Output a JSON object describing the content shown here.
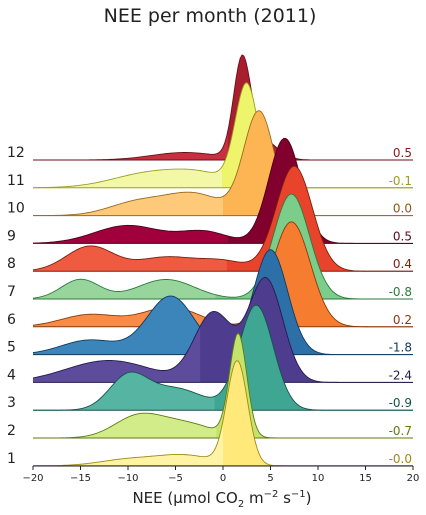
{
  "chart_data": {
    "type": "area",
    "title": "NEE per month (2011)",
    "xlabel": {
      "main": "NEE (µmol CO",
      "sub": "2",
      "mid": " m",
      "sup1": "−2",
      "mid2": " s",
      "sup2": "−1",
      "end": ")"
    },
    "xlim": [
      -20,
      20
    ],
    "xticks": [
      {
        "value": -20,
        "label": "−20"
      },
      {
        "value": -15,
        "label": "−15"
      },
      {
        "value": -10,
        "label": "−10"
      },
      {
        "value": -5,
        "label": "−5"
      },
      {
        "value": 0,
        "label": "0"
      },
      {
        "value": 5,
        "label": "5"
      },
      {
        "value": 10,
        "label": "10"
      },
      {
        "value": 15,
        "label": "15"
      },
      {
        "value": 20,
        "label": "20"
      }
    ],
    "series": [
      {
        "month": "12",
        "mean_label": "0.5",
        "mean": 0.5,
        "fill": "#c8303f",
        "dark": "#a81e2e",
        "line": "#6a0f1a",
        "label_color": "#8b1a1a",
        "components": [
          [
            2.0,
            0.9,
            1.0
          ],
          [
            4.0,
            1.6,
            0.22
          ],
          [
            -4.0,
            3.5,
            0.08
          ]
        ]
      },
      {
        "month": "11",
        "mean_label": "-0.1",
        "mean": -0.1,
        "fill": "#f3f8a6",
        "dark": "#eef46c",
        "line": "#9aa11a",
        "label_color": "#9aa11a",
        "components": [
          [
            2.5,
            1.2,
            0.95
          ],
          [
            -7.5,
            4.0,
            0.14
          ],
          [
            -2.0,
            3.0,
            0.1
          ]
        ]
      },
      {
        "month": "10",
        "mean_label": "0.0",
        "mean": 0.0,
        "fill": "#fec979",
        "dark": "#fdb553",
        "line": "#9a6a1f",
        "label_color": "#8a5a10",
        "components": [
          [
            3.8,
            1.6,
            0.78
          ],
          [
            -3.0,
            3.0,
            0.16
          ],
          [
            -9.0,
            3.0,
            0.1
          ]
        ]
      },
      {
        "month": "9",
        "mean_label": "0.5",
        "mean": 0.5,
        "fill": "#a0003c",
        "dark": "#82002e",
        "line": "#4c0019",
        "label_color": "#5a0a1a",
        "components": [
          [
            6.5,
            1.7,
            0.82
          ],
          [
            -10.0,
            3.5,
            0.14
          ],
          [
            -2.0,
            2.5,
            0.09
          ]
        ]
      },
      {
        "month": "8",
        "mean_label": "0.4",
        "mean": 0.4,
        "fill": "#ef5b40",
        "dark": "#e8442c",
        "line": "#7a1f0f",
        "label_color": "#7a1f0f",
        "components": [
          [
            7.5,
            1.9,
            0.76
          ],
          [
            -14.0,
            2.5,
            0.18
          ],
          [
            -6.0,
            3.0,
            0.1
          ],
          [
            0.0,
            2.5,
            0.07
          ]
        ]
      },
      {
        "month": "7",
        "mean_label": "-0.8",
        "mean": -0.8,
        "fill": "#97d59c",
        "dark": "#7ccc8a",
        "line": "#2c7a3c",
        "label_color": "#2c7a3c",
        "components": [
          [
            7.2,
            1.9,
            0.86
          ],
          [
            -15.0,
            2.0,
            0.16
          ],
          [
            -6.0,
            3.0,
            0.16
          ]
        ]
      },
      {
        "month": "6",
        "mean_label": "0.2",
        "mean": 0.2,
        "fill": "#f88c47",
        "dark": "#f67d2f",
        "line": "#8a3a0c",
        "label_color": "#8a3a0c",
        "components": [
          [
            7.2,
            2.0,
            0.86
          ],
          [
            -5.5,
            3.0,
            0.16
          ],
          [
            -14.0,
            3.0,
            0.1
          ]
        ]
      },
      {
        "month": "5",
        "mean_label": "-1.8",
        "mean": -1.8,
        "fill": "#3c85ba",
        "dark": "#2d70a8",
        "line": "#123a5a",
        "label_color": "#123a5a",
        "components": [
          [
            5.0,
            1.8,
            0.72
          ],
          [
            -5.5,
            2.5,
            0.4
          ],
          [
            -14.0,
            3.0,
            0.1
          ]
        ]
      },
      {
        "month": "4",
        "mean_label": "-2.4",
        "mean": -2.4,
        "fill": "#5d4b9c",
        "dark": "#4e3d8e",
        "line": "#241b4e",
        "label_color": "#241b4e",
        "components": [
          [
            4.5,
            1.8,
            0.66
          ],
          [
            -1.0,
            2.0,
            0.44
          ],
          [
            -12.0,
            4.5,
            0.14
          ]
        ]
      },
      {
        "month": "3",
        "mean_label": "-0.9",
        "mean": -0.9,
        "fill": "#56b4a2",
        "dark": "#40a694",
        "line": "#14524a",
        "label_color": "#14524a",
        "components": [
          [
            3.5,
            1.8,
            0.78
          ],
          [
            -10.0,
            2.0,
            0.24
          ],
          [
            -5.0,
            3.0,
            0.16
          ]
        ]
      },
      {
        "month": "2",
        "mean_label": "-0.7",
        "mean": -0.7,
        "fill": "#d2ec8a",
        "dark": "#c2e36c",
        "line": "#5d7a14",
        "label_color": "#5d7a14",
        "components": [
          [
            1.6,
            0.9,
            1.0
          ],
          [
            -9.0,
            2.5,
            0.2
          ],
          [
            -4.0,
            3.0,
            0.14
          ]
        ]
      },
      {
        "month": "1",
        "mean_label": "-0.0",
        "mean": -0.0,
        "fill": "#fff3a6",
        "dark": "#ffe97a",
        "line": "#a08a10",
        "label_color": "#a08a10",
        "components": [
          [
            1.5,
            1.1,
            1.0
          ],
          [
            -4.0,
            3.0,
            0.1
          ],
          [
            -10.0,
            3.0,
            0.06
          ]
        ]
      }
    ]
  }
}
